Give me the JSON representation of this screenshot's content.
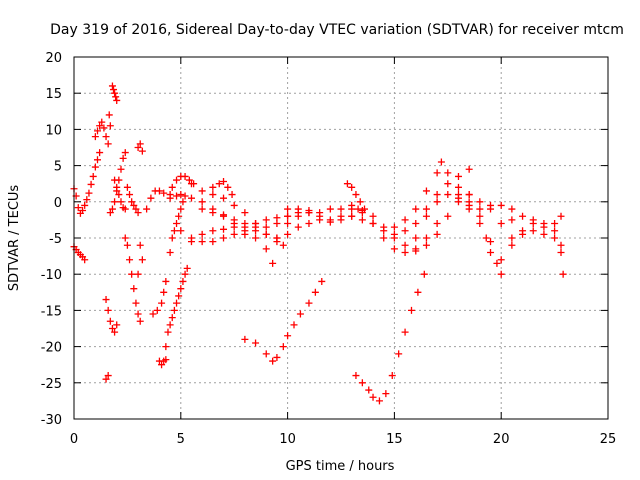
{
  "chart_data": {
    "type": "scatter",
    "title": "Day 319 of 2016, Sidereal Day-to-day VTEC variation (SDTVAR) for receiver mtcm",
    "xlabel": "GPS time / hours",
    "ylabel": "SDTVAR / TECUs",
    "xlim": [
      0,
      25
    ],
    "ylim": [
      -30,
      20
    ],
    "grid": true,
    "marker": "+",
    "series": [
      {
        "name": "SDTVAR",
        "color": "#ff0000",
        "points": [
          [
            0.0,
            1.8
          ],
          [
            0.1,
            0.8
          ],
          [
            0.2,
            -0.8
          ],
          [
            0.3,
            -1.6
          ],
          [
            0.4,
            -1.2
          ],
          [
            0.5,
            -0.5
          ],
          [
            0.6,
            0.3
          ],
          [
            0.7,
            1.2
          ],
          [
            0.8,
            2.4
          ],
          [
            0.9,
            3.5
          ],
          [
            1.0,
            4.8
          ],
          [
            1.1,
            5.8
          ],
          [
            1.2,
            6.8
          ],
          [
            0.0,
            -6.2
          ],
          [
            0.1,
            -6.6
          ],
          [
            0.2,
            -7.0
          ],
          [
            0.3,
            -7.3
          ],
          [
            0.4,
            -7.6
          ],
          [
            0.5,
            -8.0
          ],
          [
            1.0,
            9.0
          ],
          [
            1.1,
            9.8
          ],
          [
            1.2,
            10.5
          ],
          [
            1.3,
            11.0
          ],
          [
            1.4,
            10.2
          ],
          [
            1.5,
            9.0
          ],
          [
            1.6,
            8.0
          ],
          [
            1.65,
            12.0
          ],
          [
            1.7,
            10.5
          ],
          [
            1.8,
            16.0
          ],
          [
            1.85,
            15.5
          ],
          [
            1.9,
            15.0
          ],
          [
            1.95,
            14.5
          ],
          [
            2.0,
            14.0
          ],
          [
            1.7,
            -1.5
          ],
          [
            1.8,
            -1.0
          ],
          [
            1.9,
            0.0
          ],
          [
            2.0,
            1.5
          ],
          [
            2.1,
            3.0
          ],
          [
            2.2,
            4.5
          ],
          [
            2.3,
            6.0
          ],
          [
            2.4,
            6.8
          ],
          [
            1.9,
            3.0
          ],
          [
            2.0,
            2.0
          ],
          [
            2.1,
            1.0
          ],
          [
            2.2,
            0.0
          ],
          [
            2.3,
            -0.8
          ],
          [
            2.4,
            -1.0
          ],
          [
            1.5,
            -13.5
          ],
          [
            1.6,
            -15.0
          ],
          [
            1.7,
            -16.5
          ],
          [
            1.8,
            -17.5
          ],
          [
            1.9,
            -18.0
          ],
          [
            2.0,
            -17.0
          ],
          [
            1.5,
            -24.5
          ],
          [
            1.6,
            -24.0
          ],
          [
            2.4,
            -5.0
          ],
          [
            2.5,
            -6.0
          ],
          [
            2.6,
            -8.0
          ],
          [
            2.7,
            -10.0
          ],
          [
            2.8,
            -12.0
          ],
          [
            2.9,
            -14.0
          ],
          [
            3.0,
            -15.5
          ],
          [
            3.1,
            -16.5
          ],
          [
            2.5,
            2.0
          ],
          [
            2.6,
            1.0
          ],
          [
            2.7,
            0.0
          ],
          [
            2.8,
            -0.5
          ],
          [
            2.9,
            -1.0
          ],
          [
            3.0,
            -1.5
          ],
          [
            3.1,
            -6.0
          ],
          [
            3.2,
            -8.0
          ],
          [
            3.0,
            -10.0
          ],
          [
            3.0,
            7.5
          ],
          [
            3.1,
            8.0
          ],
          [
            3.2,
            7.0
          ],
          [
            3.4,
            -1.0
          ],
          [
            3.6,
            0.5
          ],
          [
            3.8,
            1.5
          ],
          [
            4.0,
            1.5
          ],
          [
            4.2,
            1.2
          ],
          [
            4.5,
            1.0
          ],
          [
            3.7,
            -15.5
          ],
          [
            3.9,
            -15.0
          ],
          [
            4.1,
            -14.0
          ],
          [
            4.2,
            -12.5
          ],
          [
            4.3,
            -11.0
          ],
          [
            4.0,
            -22.0
          ],
          [
            4.1,
            -22.5
          ],
          [
            4.2,
            -22.0
          ],
          [
            4.3,
            -21.8
          ],
          [
            4.3,
            -20.0
          ],
          [
            4.4,
            -18.0
          ],
          [
            4.5,
            -17.0
          ],
          [
            4.6,
            -16.0
          ],
          [
            4.7,
            -15.0
          ],
          [
            4.8,
            -14.0
          ],
          [
            4.9,
            -13.0
          ],
          [
            5.0,
            -12.0
          ],
          [
            5.1,
            -11.0
          ],
          [
            5.2,
            -10.0
          ],
          [
            5.3,
            -9.2
          ],
          [
            4.5,
            -7.0
          ],
          [
            4.6,
            -5.0
          ],
          [
            4.7,
            -4.0
          ],
          [
            4.8,
            -3.0
          ],
          [
            4.9,
            -2.0
          ],
          [
            5.0,
            -1.0
          ],
          [
            5.1,
            0.0
          ],
          [
            5.2,
            0.8
          ],
          [
            4.6,
            2.0
          ],
          [
            4.8,
            3.0
          ],
          [
            5.0,
            3.5
          ],
          [
            5.2,
            3.5
          ],
          [
            5.4,
            3.0
          ],
          [
            5.6,
            2.5
          ],
          [
            4.5,
            0.5
          ],
          [
            4.8,
            0.8
          ],
          [
            5.0,
            1.0
          ],
          [
            5.5,
            0.5
          ],
          [
            6.0,
            0.0
          ],
          [
            6.5,
            -1.0
          ],
          [
            7.0,
            -2.0
          ],
          [
            7.5,
            -3.0
          ],
          [
            8.0,
            -4.0
          ],
          [
            8.5,
            -5.0
          ],
          [
            9.0,
            -6.5
          ],
          [
            9.3,
            -8.5
          ],
          [
            5.0,
            -4.0
          ],
          [
            5.5,
            -5.0
          ],
          [
            6.0,
            -5.5
          ],
          [
            6.5,
            -5.5
          ],
          [
            7.0,
            -5.0
          ],
          [
            7.5,
            -4.5
          ],
          [
            8.0,
            -4.5
          ],
          [
            8.5,
            -4.0
          ],
          [
            9.0,
            -3.5
          ],
          [
            9.5,
            -3.0
          ],
          [
            10.0,
            -2.0
          ],
          [
            10.5,
            -1.5
          ],
          [
            11.0,
            -1.5
          ],
          [
            5.5,
            -5.5
          ],
          [
            6.0,
            -4.5
          ],
          [
            6.5,
            -4.0
          ],
          [
            7.0,
            -3.8
          ],
          [
            7.5,
            -3.5
          ],
          [
            8.0,
            -3.5
          ],
          [
            8.5,
            -3.0
          ],
          [
            9.0,
            -2.5
          ],
          [
            9.5,
            -2.2
          ],
          [
            10.0,
            -2.0
          ],
          [
            5.5,
            2.5
          ],
          [
            6.0,
            1.5
          ],
          [
            6.5,
            1.0
          ],
          [
            7.0,
            0.5
          ],
          [
            7.5,
            -0.5
          ],
          [
            8.0,
            -1.5
          ],
          [
            8.5,
            -3.0
          ],
          [
            9.0,
            -4.5
          ],
          [
            9.5,
            -5.5
          ],
          [
            9.8,
            -6.0
          ],
          [
            6.5,
            2.0
          ],
          [
            6.8,
            2.5
          ],
          [
            7.0,
            2.8
          ],
          [
            7.2,
            2.0
          ],
          [
            7.4,
            1.0
          ],
          [
            6.0,
            -1.0
          ],
          [
            6.5,
            -1.5
          ],
          [
            7.0,
            -1.8
          ],
          [
            7.5,
            -2.5
          ],
          [
            8.0,
            -3.0
          ],
          [
            8.5,
            -3.5
          ],
          [
            9.0,
            -4.5
          ],
          [
            9.5,
            -5.0
          ],
          [
            10.0,
            -4.5
          ],
          [
            10.5,
            -3.5
          ],
          [
            11.0,
            -3.0
          ],
          [
            11.5,
            -2.5
          ],
          [
            12.0,
            -2.5
          ],
          [
            12.5,
            -2.0
          ],
          [
            13.0,
            -2.0
          ],
          [
            13.5,
            -2.5
          ],
          [
            14.0,
            -3.0
          ],
          [
            9.5,
            -5.0
          ],
          [
            10.0,
            -3.0
          ],
          [
            10.5,
            -2.0
          ],
          [
            11.0,
            -1.5
          ],
          [
            11.5,
            -1.5
          ],
          [
            12.0,
            -1.0
          ],
          [
            12.5,
            -1.0
          ],
          [
            13.0,
            -1.0
          ],
          [
            13.5,
            -1.2
          ],
          [
            10.0,
            -1.0
          ],
          [
            10.5,
            -1.0
          ],
          [
            11.0,
            -1.2
          ],
          [
            11.5,
            -2.0
          ],
          [
            12.0,
            -2.8
          ],
          [
            12.5,
            -2.5
          ],
          [
            13.0,
            -2.0
          ],
          [
            13.3,
            -1.0
          ],
          [
            8.0,
            -19.0
          ],
          [
            8.5,
            -19.5
          ],
          [
            9.0,
            -21.0
          ],
          [
            9.3,
            -22.0
          ],
          [
            9.5,
            -21.5
          ],
          [
            9.8,
            -20.0
          ],
          [
            10.0,
            -18.5
          ],
          [
            10.3,
            -17.0
          ],
          [
            10.6,
            -15.5
          ],
          [
            11.0,
            -14.0
          ],
          [
            11.3,
            -12.5
          ],
          [
            11.6,
            -11.0
          ],
          [
            12.8,
            2.5
          ],
          [
            13.0,
            2.0
          ],
          [
            13.2,
            1.0
          ],
          [
            13.4,
            0.0
          ],
          [
            13.6,
            -1.0
          ],
          [
            13.0,
            -0.5
          ],
          [
            13.5,
            -1.5
          ],
          [
            14.0,
            -2.0
          ],
          [
            14.5,
            -3.5
          ],
          [
            15.0,
            -5.0
          ],
          [
            15.5,
            -6.0
          ],
          [
            16.0,
            -6.5
          ],
          [
            16.5,
            -5.0
          ],
          [
            17.0,
            -3.0
          ],
          [
            14.0,
            -3.0
          ],
          [
            14.5,
            -5.0
          ],
          [
            15.0,
            -6.5
          ],
          [
            15.5,
            -7.0
          ],
          [
            16.0,
            -6.8
          ],
          [
            16.5,
            -6.0
          ],
          [
            17.0,
            -4.5
          ],
          [
            17.5,
            -2.0
          ],
          [
            18.0,
            0.0
          ],
          [
            18.5,
            1.0
          ],
          [
            14.5,
            -4.0
          ],
          [
            15.0,
            -4.5
          ],
          [
            15.5,
            -4.0
          ],
          [
            16.0,
            -3.0
          ],
          [
            16.5,
            -1.0
          ],
          [
            17.0,
            1.0
          ],
          [
            17.5,
            2.5
          ],
          [
            18.0,
            3.5
          ],
          [
            18.5,
            4.5
          ],
          [
            15.0,
            -3.5
          ],
          [
            15.5,
            -2.5
          ],
          [
            16.0,
            -1.0
          ],
          [
            16.5,
            1.5
          ],
          [
            17.0,
            4.0
          ],
          [
            17.2,
            5.5
          ],
          [
            17.5,
            4.0
          ],
          [
            18.0,
            2.0
          ],
          [
            18.5,
            1.0
          ],
          [
            19.0,
            0.0
          ],
          [
            19.5,
            -0.5
          ],
          [
            16.0,
            -5.0
          ],
          [
            16.5,
            -2.0
          ],
          [
            17.0,
            0.0
          ],
          [
            17.5,
            1.0
          ],
          [
            18.0,
            0.5
          ],
          [
            18.5,
            -0.5
          ],
          [
            19.0,
            -2.0
          ],
          [
            19.3,
            -5.0
          ],
          [
            19.5,
            -7.0
          ],
          [
            19.8,
            -8.5
          ],
          [
            20.0,
            -10.0
          ],
          [
            18.5,
            0.0
          ],
          [
            19.0,
            -1.0
          ],
          [
            19.5,
            -1.0
          ],
          [
            20.0,
            -0.5
          ],
          [
            20.5,
            -1.0
          ],
          [
            18.0,
            1.0
          ],
          [
            18.5,
            -1.0
          ],
          [
            19.0,
            -3.0
          ],
          [
            19.5,
            -5.5
          ],
          [
            20.0,
            -8.0
          ],
          [
            20.5,
            -6.0
          ],
          [
            21.0,
            -4.0
          ],
          [
            21.5,
            -3.0
          ],
          [
            22.0,
            -3.5
          ],
          [
            22.5,
            -4.0
          ],
          [
            22.8,
            -6.0
          ],
          [
            20.0,
            -3.0
          ],
          [
            20.5,
            -2.5
          ],
          [
            21.0,
            -2.0
          ],
          [
            21.5,
            -2.5
          ],
          [
            22.0,
            -3.0
          ],
          [
            22.5,
            -3.0
          ],
          [
            22.8,
            -2.0
          ],
          [
            20.5,
            -5.0
          ],
          [
            21.0,
            -4.5
          ],
          [
            21.5,
            -4.0
          ],
          [
            22.0,
            -4.5
          ],
          [
            22.5,
            -5.0
          ],
          [
            22.8,
            -7.0
          ],
          [
            22.9,
            -10.0
          ],
          [
            13.2,
            -24.0
          ],
          [
            13.5,
            -25.0
          ],
          [
            13.8,
            -26.0
          ],
          [
            14.0,
            -27.0
          ],
          [
            14.3,
            -27.5
          ],
          [
            14.6,
            -26.5
          ],
          [
            14.9,
            -24.0
          ],
          [
            15.2,
            -21.0
          ],
          [
            15.5,
            -18.0
          ],
          [
            15.8,
            -15.0
          ],
          [
            16.1,
            -12.5
          ],
          [
            16.4,
            -10.0
          ]
        ]
      }
    ],
    "xticks": [
      {
        "value": 0,
        "label": "0"
      },
      {
        "value": 5,
        "label": "5"
      },
      {
        "value": 10,
        "label": "10"
      },
      {
        "value": 15,
        "label": "15"
      },
      {
        "value": 20,
        "label": "20"
      },
      {
        "value": 25,
        "label": "25"
      }
    ],
    "yticks": [
      {
        "value": 20,
        "label": "20"
      },
      {
        "value": 15,
        "label": "15"
      },
      {
        "value": 10,
        "label": "10"
      },
      {
        "value": 5,
        "label": "5"
      },
      {
        "value": 0,
        "label": "0"
      },
      {
        "value": -5,
        "label": "-5"
      },
      {
        "value": -10,
        "label": "-10"
      },
      {
        "value": -15,
        "label": "-15"
      },
      {
        "value": -20,
        "label": "-20"
      },
      {
        "value": -25,
        "label": "-25"
      },
      {
        "value": -30,
        "label": "-30"
      }
    ]
  }
}
